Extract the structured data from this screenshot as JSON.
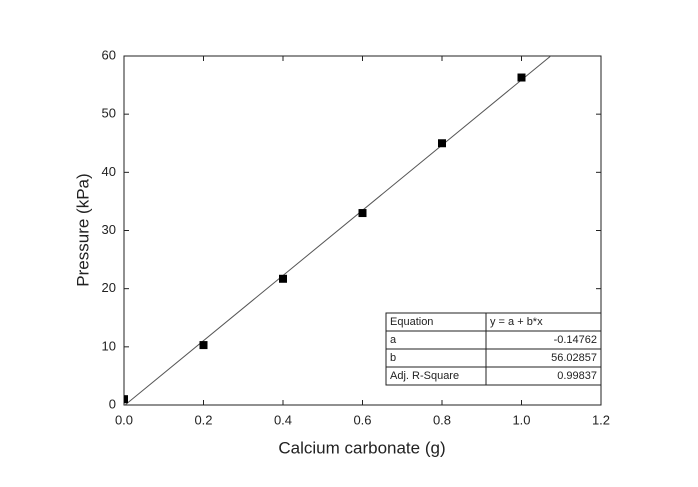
{
  "chart_data": {
    "type": "scatter",
    "x_label": "Calcium carbonate (g)",
    "y_label": "Pressure (kPa)",
    "series": [
      {
        "name": "Pressure",
        "color": "#000000",
        "x": [
          0,
          0.2,
          0.4,
          0.6,
          0.8,
          1.0
        ],
        "values": [
          1.0,
          10.3,
          21.7,
          33.0,
          45.0,
          56.3
        ]
      }
    ],
    "xlim": [
      0,
      1.2
    ],
    "ylim": [
      0,
      60
    ],
    "xticks": [
      {
        "value": 0,
        "label": "0.0"
      },
      0.2,
      0.4,
      0.6,
      0.8,
      {
        "value": 1,
        "label": "1.0"
      },
      1.2
    ],
    "yticks": [
      0,
      10,
      20,
      30,
      40,
      50,
      60
    ],
    "fit_color": "#555555",
    "fit_table": {
      "header": [
        "Equation",
        "y = a + b*x"
      ],
      "rows": [
        {
          "label": "a",
          "value": -0.14762
        },
        {
          "label": "b",
          "value": 56.02857
        },
        {
          "label": "Adj. R-Square",
          "value": 0.99837
        }
      ]
    }
  }
}
